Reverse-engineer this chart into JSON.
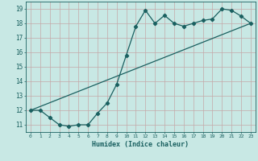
{
  "xlabel": "Humidex (Indice chaleur)",
  "bg_color": "#c8e8e4",
  "grid_color": "#c4a8a8",
  "line_color": "#1a6060",
  "curve_x": [
    0,
    1,
    2,
    3,
    4,
    5,
    6,
    7,
    8,
    9,
    10,
    11,
    12,
    13,
    14,
    15,
    16,
    17,
    18,
    19,
    20,
    21,
    22,
    23
  ],
  "curve_y": [
    12.0,
    12.0,
    11.5,
    11.0,
    10.9,
    11.0,
    11.0,
    11.8,
    12.5,
    13.8,
    15.8,
    17.8,
    18.9,
    18.0,
    18.55,
    18.0,
    17.8,
    18.0,
    18.2,
    18.3,
    19.0,
    18.9,
    18.5,
    18.0
  ],
  "line_x": [
    0,
    23
  ],
  "line_y": [
    12.0,
    18.0
  ],
  "xlim": [
    -0.5,
    23.5
  ],
  "ylim": [
    10.5,
    19.5
  ],
  "yticks": [
    11,
    12,
    13,
    14,
    15,
    16,
    17,
    18,
    19
  ],
  "xticks": [
    0,
    1,
    2,
    3,
    4,
    5,
    6,
    7,
    8,
    9,
    10,
    11,
    12,
    13,
    14,
    15,
    16,
    17,
    18,
    19,
    20,
    21,
    22,
    23
  ],
  "xtick_labels": [
    "0",
    "1",
    "2",
    "3",
    "4",
    "5",
    "6",
    "7",
    "8",
    "9",
    "10",
    "11",
    "12",
    "13",
    "14",
    "15",
    "16",
    "17",
    "18",
    "19",
    "20",
    "21",
    "22",
    "23"
  ],
  "marker": "D",
  "markersize": 2.2,
  "linewidth": 0.9
}
